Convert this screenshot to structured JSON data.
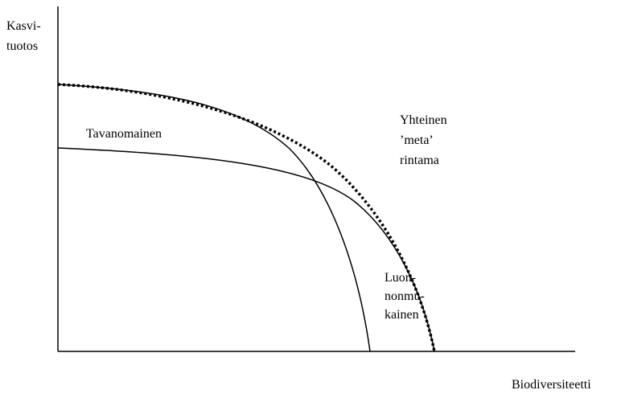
{
  "axes": {
    "y_label": [
      "Kasvi-",
      "tuotos"
    ],
    "x_label": "Biodiversiteetti"
  },
  "curves": [
    {
      "label": [
        "Tavanomainen"
      ]
    },
    {
      "label": [
        "Yhteinen",
        "’meta’",
        "rintama"
      ]
    },
    {
      "label": [
        "Luon-",
        "nonmu-",
        "kainen"
      ]
    }
  ]
}
